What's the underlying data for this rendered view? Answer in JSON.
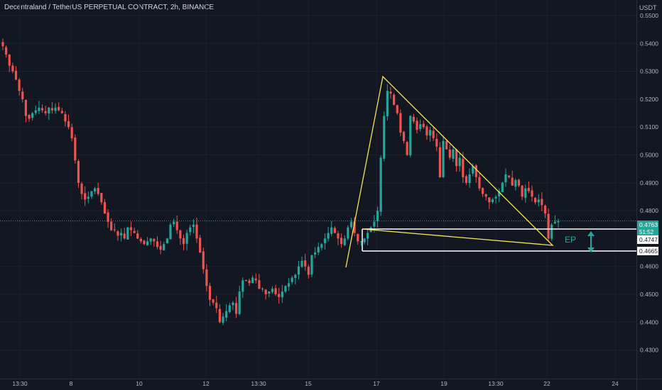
{
  "header": {
    "title": "Decentraland / TetherUS PERPETUAL CONTRACT, 2h, BINANCE",
    "currency": "USDT"
  },
  "colors": {
    "background": "#131722",
    "grid": "#1e222d",
    "up": "#26a69a",
    "down": "#ef5350",
    "triangle": "#f5e35a",
    "box": "#ffffff",
    "ep_marker": "#26a69a"
  },
  "chart_data": {
    "type": "candlestick",
    "ylim": [
      0.426,
      0.556
    ],
    "y_ticks": [
      "0.5500",
      "0.5400",
      "0.5300",
      "0.5200",
      "0.5100",
      "0.5000",
      "0.4900",
      "0.4800",
      "0.4600",
      "0.4500",
      "0.4400",
      "0.4300"
    ],
    "x_ticks": [
      "13:30",
      "8",
      "10",
      "12",
      "13:30",
      "15",
      "17",
      "19",
      "13:30",
      "22",
      "24"
    ],
    "price_labels": [
      {
        "value": "0.4763",
        "sub": "51:52",
        "style": "current"
      },
      {
        "value": "0.4747",
        "style": "level"
      },
      {
        "value": "0.4665",
        "style": "level"
      }
    ],
    "annotation": "EP",
    "close_series": [
      0.539,
      0.536,
      0.532,
      0.53,
      0.527,
      0.523,
      0.52,
      0.514,
      0.513,
      0.515,
      0.516,
      0.517,
      0.516,
      0.515,
      0.517,
      0.516,
      0.517,
      0.516,
      0.515,
      0.512,
      0.51,
      0.506,
      0.498,
      0.49,
      0.486,
      0.484,
      0.485,
      0.487,
      0.488,
      0.486,
      0.483,
      0.479,
      0.476,
      0.473,
      0.473,
      0.471,
      0.472,
      0.47,
      0.474,
      0.473,
      0.472,
      0.47,
      0.469,
      0.468,
      0.469,
      0.47,
      0.469,
      0.467,
      0.466,
      0.468,
      0.47,
      0.475,
      0.476,
      0.473,
      0.47,
      0.468,
      0.472,
      0.474,
      0.475,
      0.47,
      0.465,
      0.459,
      0.453,
      0.448,
      0.447,
      0.445,
      0.44,
      0.442,
      0.444,
      0.446,
      0.447,
      0.443,
      0.451,
      0.455,
      0.455,
      0.454,
      0.456,
      0.455,
      0.452,
      0.452,
      0.45,
      0.451,
      0.452,
      0.45,
      0.449,
      0.451,
      0.453,
      0.454,
      0.456,
      0.457,
      0.46,
      0.462,
      0.46,
      0.457,
      0.464,
      0.465,
      0.467,
      0.468,
      0.47,
      0.472,
      0.474,
      0.472,
      0.47,
      0.468,
      0.47,
      0.474,
      0.476,
      0.472,
      0.469,
      0.469,
      0.47,
      0.472,
      0.474,
      0.476,
      0.48,
      0.499,
      0.514,
      0.523,
      0.522,
      0.518,
      0.515,
      0.508,
      0.505,
      0.5,
      0.514,
      0.512,
      0.509,
      0.511,
      0.51,
      0.507,
      0.509,
      0.506,
      0.503,
      0.492,
      0.505,
      0.502,
      0.499,
      0.502,
      0.496,
      0.499,
      0.492,
      0.49,
      0.493,
      0.496,
      0.492,
      0.488,
      0.486,
      0.485,
      0.483,
      0.484,
      0.485,
      0.487,
      0.49,
      0.493,
      0.492,
      0.489,
      0.491,
      0.489,
      0.485,
      0.488,
      0.487,
      0.485,
      0.483,
      0.484,
      0.482,
      0.479,
      0.47,
      0.475,
      0.476,
      0.4763
    ]
  }
}
